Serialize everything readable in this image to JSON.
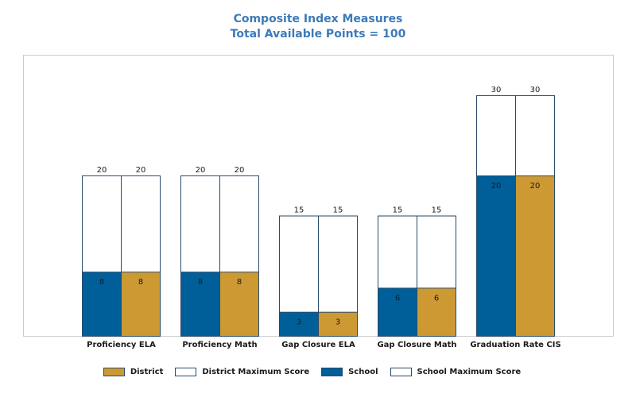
{
  "title": "Composite Index Measures",
  "subtitle": "Total Available Points = 100",
  "chart_data": {
    "type": "bar",
    "categories": [
      "Proficiency ELA",
      "Proficiency Math",
      "Gap Closure ELA",
      "Gap Closure Math",
      "Graduation Rate CIS"
    ],
    "series": [
      {
        "name": "School",
        "values": [
          8,
          8,
          3,
          6,
          20
        ],
        "max_name": "School Maximum Score",
        "max_values": [
          20,
          20,
          15,
          15,
          30
        ],
        "color": "#005f99"
      },
      {
        "name": "District",
        "values": [
          8,
          8,
          3,
          6,
          20
        ],
        "max_name": "District Maximum Score",
        "max_values": [
          20,
          20,
          15,
          15,
          30
        ],
        "color": "#cc9933"
      }
    ],
    "ylim": [
      0,
      30
    ],
    "grid": false,
    "legend_position": "bottom",
    "max_fill_color": "#ffffff",
    "border_color": "#2a4a6a"
  },
  "legend": [
    {
      "label": "District",
      "color": "#cc9933"
    },
    {
      "label": "District Maximum Score",
      "color": "#ffffff"
    },
    {
      "label": "School",
      "color": "#005f99"
    },
    {
      "label": "School Maximum Score",
      "color": "#ffffff"
    }
  ]
}
